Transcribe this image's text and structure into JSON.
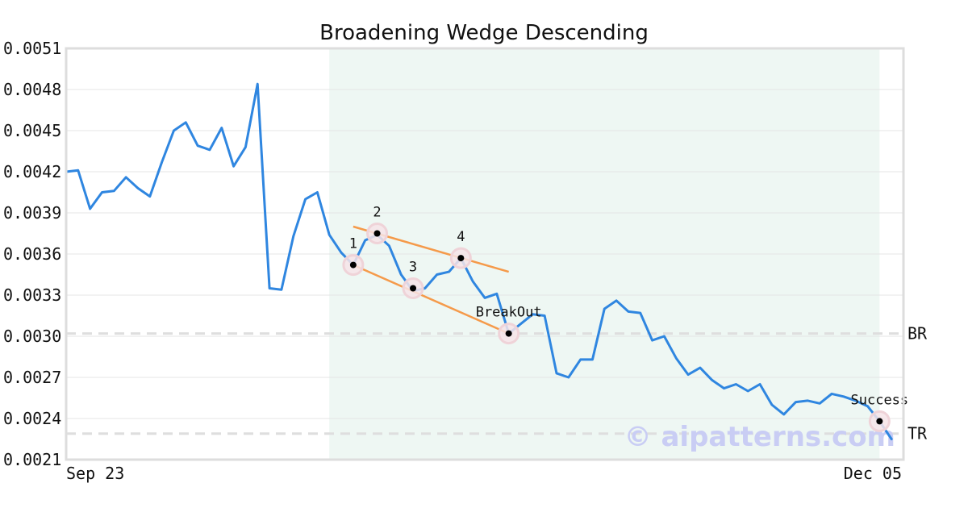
{
  "chart_data": {
    "type": "line",
    "title": "Broadening Wedge Descending",
    "watermark": "© aipatterns.com",
    "ylim": [
      0.0021,
      0.0051
    ],
    "y_ticks": [
      "0.0051",
      "0.0048",
      "0.0045",
      "0.0042",
      "0.0039",
      "0.0036",
      "0.0033",
      "0.0030",
      "0.0027",
      "0.0024",
      "0.0021"
    ],
    "x_labels": [
      "Sep 23",
      "Dec 05"
    ],
    "x_range": [
      0,
      70
    ],
    "series": [
      {
        "color": "#2f86e0",
        "values": [
          0.0042,
          0.00421,
          0.00393,
          0.00405,
          0.00406,
          0.00416,
          0.00408,
          0.00402,
          0.00427,
          0.0045,
          0.00456,
          0.00439,
          0.00436,
          0.00452,
          0.00424,
          0.00438,
          0.00484,
          0.00335,
          0.00334,
          0.00373,
          0.004,
          0.00405,
          0.00374,
          0.00361,
          0.00352,
          0.0037,
          0.00374,
          0.00366,
          0.00345,
          0.00333,
          0.00335,
          0.00345,
          0.00347,
          0.00357,
          0.0034,
          0.00328,
          0.00331,
          0.00302,
          0.00309,
          0.00316,
          0.00315,
          0.00273,
          0.0027,
          0.00283,
          0.00283,
          0.0032,
          0.00326,
          0.00318,
          0.00317,
          0.00297,
          0.003,
          0.00284,
          0.00272,
          0.00277,
          0.00268,
          0.00262,
          0.00265,
          0.0026,
          0.00265,
          0.0025,
          0.00243,
          0.00252,
          0.00253,
          0.00251,
          0.00258,
          0.00256,
          0.00253,
          0.00249,
          0.00238,
          0.00225
        ]
      }
    ],
    "pattern_window": [
      22,
      68
    ],
    "pattern_window_color": "#eef7f3",
    "trendlines": [
      {
        "color": "#f59a4a",
        "from": [
          24,
          0.00352
        ],
        "to": [
          37,
          0.00302
        ]
      },
      {
        "color": "#f59a4a",
        "from": [
          24,
          0.0038
        ],
        "to": [
          37,
          0.00347
        ]
      }
    ],
    "points": [
      {
        "label": "1",
        "x": 24,
        "y": 0.00352
      },
      {
        "label": "2",
        "x": 26,
        "y": 0.00375
      },
      {
        "label": "3",
        "x": 29,
        "y": 0.00335
      },
      {
        "label": "4",
        "x": 33,
        "y": 0.00357
      },
      {
        "label": "BreakOut",
        "x": 37,
        "y": 0.00302
      },
      {
        "label": "Success",
        "x": 68,
        "y": 0.00238
      }
    ],
    "reference_lines": [
      {
        "label": "BR",
        "y": 0.00302
      },
      {
        "label": "TR",
        "y": 0.00229
      }
    ],
    "grid": true,
    "legend": "none"
  }
}
